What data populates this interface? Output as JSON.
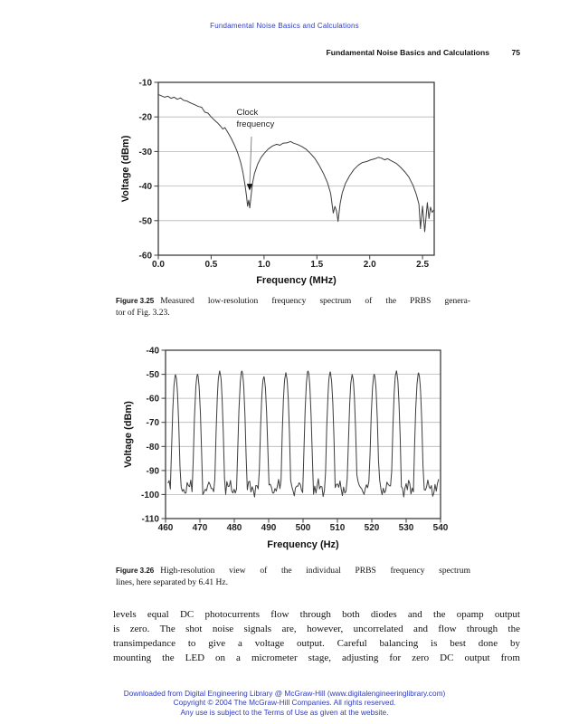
{
  "page": {
    "background": "#ffffff",
    "link_blue": "#2e3cbe"
  },
  "running_head": "Fundamental Noise Basics and Calculations",
  "page_head": {
    "title": "Fundamental Noise Basics and Calculations",
    "page_number": "75"
  },
  "figures": [
    {
      "label": "Figure 3.25",
      "caption_line1": "Measured low-resolution frequency spectrum of the PRBS genera-",
      "caption_line2": "tor of Fig. 3.23."
    },
    {
      "label": "Figure 3.26",
      "caption_line1": "High-resolution view of the individual PRBS frequency spectrum",
      "caption_line2": "lines, here separated by 6.41 Hz."
    }
  ],
  "chart_data": [
    {
      "type": "line",
      "title": "Figure 3.25 Measured low-resolution frequency spectrum of the PRBS generator",
      "xlabel": "Frequency (MHz)",
      "ylabel": "Voltage (dBm)",
      "xlim": [
        0,
        2.61
      ],
      "ylim": [
        -60,
        -10
      ],
      "grid": "horizontal",
      "line_color": "#3d3d3d",
      "xticks": {
        "values": [
          0,
          0.5,
          1.0,
          1.5,
          2.0,
          2.5
        ],
        "labels": [
          "0.0",
          "0.5",
          "1.0",
          "1.5",
          "2.0",
          "2.5"
        ]
      },
      "yticks": {
        "values": [
          -10,
          -20,
          -30,
          -40,
          -50,
          -60
        ],
        "labels": [
          "-10",
          "-20",
          "-30",
          "-40",
          "-50",
          "-60"
        ]
      },
      "annotation": {
        "lines": [
          "Clock",
          "frequency"
        ],
        "text_at": [
          0.74,
          -19.4
        ],
        "arrow_from": [
          0.881,
          -25.7
        ],
        "arrow_to": [
          0.864,
          -39.6
        ]
      },
      "series": [
        {
          "name": "PRBS spectrum",
          "points": [
            [
              0,
              -13.5
            ],
            [
              0.03,
              -13.9
            ],
            [
              0.06,
              -14.3
            ],
            [
              0.09,
              -14.0
            ],
            [
              0.12,
              -14.6
            ],
            [
              0.15,
              -14.3
            ],
            [
              0.18,
              -14.9
            ],
            [
              0.21,
              -14.5
            ],
            [
              0.24,
              -15.2
            ],
            [
              0.27,
              -15.4
            ],
            [
              0.3,
              -15.9
            ],
            [
              0.34,
              -16.4
            ],
            [
              0.38,
              -17.0
            ],
            [
              0.41,
              -17.2
            ],
            [
              0.44,
              -18.6
            ],
            [
              0.47,
              -18.9
            ],
            [
              0.5,
              -20.0
            ],
            [
              0.53,
              -20.9
            ],
            [
              0.56,
              -21.7
            ],
            [
              0.59,
              -22.7
            ],
            [
              0.61,
              -23.5
            ],
            [
              0.63,
              -23.1
            ],
            [
              0.66,
              -24.6
            ],
            [
              0.69,
              -26.2
            ],
            [
              0.72,
              -28.1
            ],
            [
              0.75,
              -30.3
            ],
            [
              0.78,
              -33.2
            ],
            [
              0.8,
              -36.0
            ],
            [
              0.82,
              -39.6
            ],
            [
              0.835,
              -43.1
            ],
            [
              0.845,
              -45.8
            ],
            [
              0.855,
              -44.1
            ],
            [
              0.865,
              -46.3
            ],
            [
              0.875,
              -43.4
            ],
            [
              0.89,
              -39.4
            ],
            [
              0.91,
              -36.4
            ],
            [
              0.94,
              -33.7
            ],
            [
              0.97,
              -31.8
            ],
            [
              1.0,
              -30.6
            ],
            [
              1.04,
              -29.3
            ],
            [
              1.08,
              -28.4
            ],
            [
              1.12,
              -27.9
            ],
            [
              1.15,
              -28.2
            ],
            [
              1.18,
              -27.6
            ],
            [
              1.22,
              -27.5
            ],
            [
              1.25,
              -27.1
            ],
            [
              1.28,
              -27.6
            ],
            [
              1.32,
              -28.0
            ],
            [
              1.36,
              -28.6
            ],
            [
              1.4,
              -29.4
            ],
            [
              1.44,
              -30.6
            ],
            [
              1.48,
              -32.0
            ],
            [
              1.52,
              -33.9
            ],
            [
              1.56,
              -36.2
            ],
            [
              1.6,
              -39.0
            ],
            [
              1.63,
              -42.1
            ],
            [
              1.655,
              -47.8
            ],
            [
              1.67,
              -45.9
            ],
            [
              1.685,
              -47.1
            ],
            [
              1.7,
              -50.2
            ],
            [
              1.72,
              -45.1
            ],
            [
              1.74,
              -42.0
            ],
            [
              1.77,
              -39.3
            ],
            [
              1.81,
              -37.0
            ],
            [
              1.85,
              -35.2
            ],
            [
              1.89,
              -34.0
            ],
            [
              1.93,
              -33.2
            ],
            [
              1.97,
              -32.9
            ],
            [
              2.01,
              -32.4
            ],
            [
              2.05,
              -32.1
            ],
            [
              2.08,
              -31.7
            ],
            [
              2.11,
              -31.9
            ],
            [
              2.14,
              -32.4
            ],
            [
              2.17,
              -32.1
            ],
            [
              2.21,
              -32.8
            ],
            [
              2.25,
              -33.4
            ],
            [
              2.29,
              -34.5
            ],
            [
              2.33,
              -35.8
            ],
            [
              2.37,
              -37.4
            ],
            [
              2.41,
              -39.8
            ],
            [
              2.44,
              -42.3
            ],
            [
              2.465,
              -45.2
            ],
            [
              2.48,
              -52.3
            ],
            [
              2.5,
              -45.8
            ],
            [
              2.52,
              -53.2
            ],
            [
              2.545,
              -44.8
            ],
            [
              2.56,
              -49.4
            ],
            [
              2.575,
              -46.1
            ],
            [
              2.59,
              -47.6
            ],
            [
              2.61,
              -46.8
            ]
          ]
        }
      ]
    },
    {
      "type": "line",
      "title": "Figure 3.26 High-resolution view of the individual PRBS frequency spectrum lines",
      "xlabel": "Frequency (Hz)",
      "ylabel": "Voltage (dBm)",
      "xlim": [
        460,
        540
      ],
      "ylim": [
        -110,
        -40
      ],
      "grid": "horizontal",
      "line_color": "#3d3d3d",
      "xticks": {
        "values": [
          460,
          470,
          480,
          490,
          500,
          510,
          520,
          530,
          540
        ],
        "labels": [
          "460",
          "470",
          "480",
          "490",
          "500",
          "510",
          "520",
          "530",
          "540"
        ]
      },
      "yticks": {
        "values": [
          -40,
          -50,
          -60,
          -70,
          -80,
          -90,
          -100,
          -110
        ],
        "labels": [
          "-40",
          "-50",
          "-60",
          "-70",
          "-80",
          "-90",
          "-100",
          "-110"
        ]
      },
      "line_separation_hz": 6.41,
      "peaks": [
        [
          462.9,
          -50.2
        ],
        [
          469.3,
          -50.0
        ],
        [
          475.75,
          -48.6
        ],
        [
          482.2,
          -48.6
        ],
        [
          488.6,
          -51.0
        ],
        [
          495.0,
          -49.3
        ],
        [
          501.45,
          -48.6
        ],
        [
          507.9,
          -49.0
        ],
        [
          514.3,
          -50.1
        ],
        [
          520.7,
          -50.0
        ],
        [
          527.15,
          -48.6
        ],
        [
          533.6,
          -49.4
        ]
      ],
      "noise_floor": {
        "mean": -97.3,
        "min": -101,
        "max": -93.3
      },
      "trace_range": [
        460.7,
        539.6
      ]
    }
  ],
  "body_text": {
    "lines": [
      "levels equal DC photocurrents flow through both diodes and the opamp output",
      "is zero. The shot noise signals are, however, uncorrelated and flow through the",
      "transimpedance to give a voltage output. Careful balancing is best done by",
      "mounting the LED on a micrometer stage, adjusting for zero DC output from"
    ]
  },
  "footer": {
    "lines": [
      "Downloaded from Digital Engineering Library @ McGraw-Hill (www.digitalengineeringlibrary.com)",
      "Copyright © 2004 The McGraw-Hill Companies. All rights reserved.",
      "Any use is subject to the Terms of Use as given at the website."
    ]
  }
}
